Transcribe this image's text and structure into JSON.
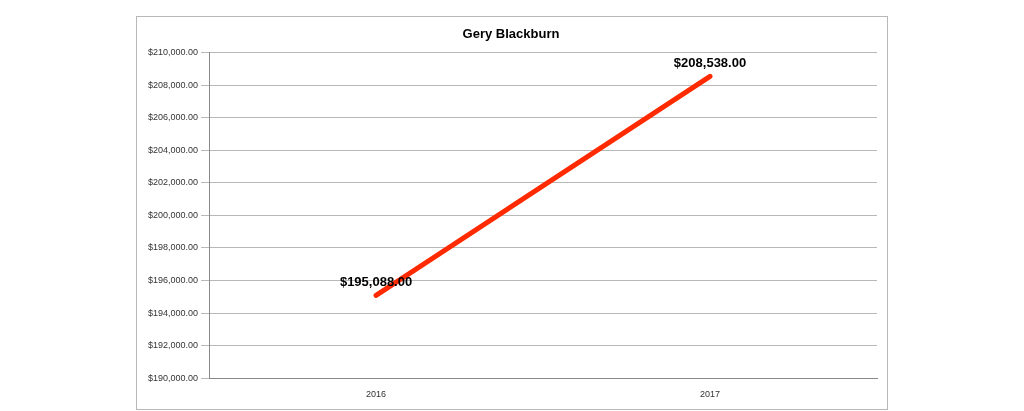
{
  "chart_data": {
    "type": "line",
    "title": "Gery Blackburn",
    "categories": [
      "2016",
      "2017"
    ],
    "series": [
      {
        "color": "#ff2a00",
        "values": [
          195088,
          208538
        ],
        "value_labels": [
          "$195,088.00",
          "$208,538.00"
        ]
      }
    ],
    "ylim": [
      190000,
      210000
    ],
    "yticks": [
      {
        "value": 190000,
        "label": "$190,000.00"
      },
      {
        "value": 192000,
        "label": "$192,000.00"
      },
      {
        "value": 194000,
        "label": "$194,000.00"
      },
      {
        "value": 196000,
        "label": "$196,000.00"
      },
      {
        "value": 198000,
        "label": "$198,000.00"
      },
      {
        "value": 200000,
        "label": "$200,000.00"
      },
      {
        "value": 202000,
        "label": "$202,000.00"
      },
      {
        "value": 204000,
        "label": "$204,000.00"
      },
      {
        "value": 206000,
        "label": "$206,000.00"
      },
      {
        "value": 208000,
        "label": "$208,000.00"
      },
      {
        "value": 210000,
        "label": "$210,000.00"
      }
    ],
    "grid": "y",
    "legend": false,
    "marker": "none",
    "line_style": "solid"
  }
}
